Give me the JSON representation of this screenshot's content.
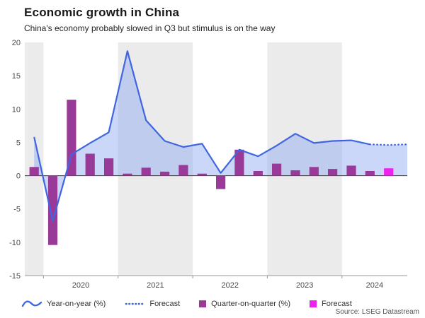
{
  "title": "Economic growth in China",
  "subtitle": "China's economy probably slowed in Q3 but stimulus is on the way",
  "source": "Source: LSEG Datastream",
  "colors": {
    "line": "#3f66e0",
    "area": "#8aa6f0",
    "bar": "#993a99",
    "forecast_bar": "#ee22ee",
    "band": "#ebebeb",
    "zero_line": "#3a3a3a",
    "axis": "#9a9a9a"
  },
  "legend": {
    "items": [
      {
        "label": "Year-on-year (%)"
      },
      {
        "label": "Forecast"
      },
      {
        "label": "Quarter-on-quarter (%)"
      },
      {
        "label": "Forecast"
      }
    ]
  },
  "chart_data": {
    "type": "line+bar",
    "title": "Economic growth in China",
    "subtitle": "China's economy probably slowed in Q3 but stimulus is on the way",
    "x": [
      "2019 Q4",
      "2020 Q1",
      "2020 Q2",
      "2020 Q3",
      "2020 Q4",
      "2021 Q1",
      "2021 Q2",
      "2021 Q3",
      "2021 Q4",
      "2022 Q1",
      "2022 Q2",
      "2022 Q3",
      "2022 Q4",
      "2023 Q1",
      "2023 Q2",
      "2023 Q3",
      "2023 Q4",
      "2024 Q1",
      "2024 Q2",
      "2024 Q3",
      "2024 Q4"
    ],
    "ylim": [
      -15,
      20
    ],
    "yticks": [
      20,
      15,
      10,
      5,
      0,
      -5,
      -10,
      -15
    ],
    "visible_quarters": 20.5,
    "grid": false,
    "legend_position": "bottom",
    "bands": [
      {
        "from": 0,
        "to": 1,
        "shaded": true,
        "label": ""
      },
      {
        "from": 1,
        "to": 5,
        "shaded": false,
        "label": "2020"
      },
      {
        "from": 5,
        "to": 9,
        "shaded": true,
        "label": "2021"
      },
      {
        "from": 9,
        "to": 13,
        "shaded": false,
        "label": "2022"
      },
      {
        "from": 13,
        "to": 17,
        "shaded": true,
        "label": "2023"
      },
      {
        "from": 17,
        "to": 20.5,
        "shaded": false,
        "label": "2024"
      }
    ],
    "series": [
      {
        "name": "Year-on-year (%)",
        "type": "line",
        "forecast_start_index": 18,
        "values": [
          5.8,
          -6.8,
          3.2,
          4.9,
          6.5,
          18.7,
          8.3,
          5.2,
          4.3,
          4.8,
          0.4,
          3.9,
          2.9,
          4.5,
          6.3,
          4.9,
          5.2,
          5.3,
          4.7,
          4.6,
          4.7
        ]
      },
      {
        "name": "Quarter-on-quarter (%)",
        "type": "bar",
        "forecast_index": 19,
        "values": [
          1.3,
          -10.4,
          11.4,
          3.3,
          2.6,
          0.3,
          1.2,
          0.6,
          1.6,
          0.3,
          -2.0,
          3.9,
          0.7,
          1.8,
          0.8,
          1.3,
          1.0,
          1.5,
          0.7,
          1.1,
          null
        ]
      }
    ]
  }
}
